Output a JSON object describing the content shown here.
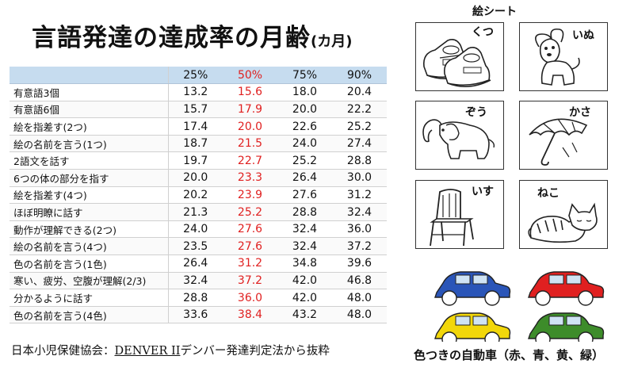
{
  "title": {
    "main": "言語発達の達成率の月齢",
    "unit": "(カ月)"
  },
  "table": {
    "columns": [
      "",
      "25%",
      "50%",
      "75%",
      "90%"
    ],
    "rows": [
      {
        "item": "有意語3個",
        "p25": "13.2",
        "p50": "15.6",
        "p75": "18.0",
        "p90": "20.4"
      },
      {
        "item": "有意語6個",
        "p25": "15.7",
        "p50": "17.9",
        "p75": "20.0",
        "p90": "22.2"
      },
      {
        "item": "絵を指差す(2つ)",
        "p25": "17.4",
        "p50": "20.0",
        "p75": "22.6",
        "p90": "25.2"
      },
      {
        "item": "絵の名前を言う(1つ)",
        "p25": "18.7",
        "p50": "21.5",
        "p75": "24.0",
        "p90": "27.4"
      },
      {
        "item": "2語文を話す",
        "p25": "19.7",
        "p50": "22.7",
        "p75": "25.2",
        "p90": "28.8"
      },
      {
        "item": "6つの体の部分を指す",
        "p25": "20.0",
        "p50": "23.3",
        "p75": "26.4",
        "p90": "30.0"
      },
      {
        "item": "絵を指差す(4つ)",
        "p25": "20.2",
        "p50": "23.9",
        "p75": "27.6",
        "p90": "31.2"
      },
      {
        "item": "ほぼ明瞭に話す",
        "p25": "21.3",
        "p50": "25.2",
        "p75": "28.8",
        "p90": "32.4"
      },
      {
        "item": "動作が理解できる(2つ)",
        "p25": "24.0",
        "p50": "27.6",
        "p75": "32.4",
        "p90": "36.0"
      },
      {
        "item": "絵の名前を言う(4つ)",
        "p25": "23.5",
        "p50": "27.6",
        "p75": "32.4",
        "p90": "37.2"
      },
      {
        "item": "色の名前を言う(1色)",
        "p25": "26.4",
        "p50": "31.2",
        "p75": "34.8",
        "p90": "39.6"
      },
      {
        "item": "寒い、疲労、空腹が理解(2/3)",
        "p25": "32.4",
        "p50": "37.2",
        "p75": "42.0",
        "p90": "46.8"
      },
      {
        "item": "分かるように話す",
        "p25": "28.8",
        "p50": "36.0",
        "p75": "42.0",
        "p90": "48.0"
      },
      {
        "item": "色の名前を言う(4色)",
        "p25": "33.6",
        "p50": "38.4",
        "p75": "43.2",
        "p90": "48.0"
      }
    ]
  },
  "source": {
    "org": "日本小児保健協会：",
    "test": "DENVER II",
    "rest": "デンバー発達判定法から抜粋"
  },
  "picture_sheet": {
    "title": "絵シート",
    "cards": [
      {
        "label": "くつ",
        "icon": "shoes-icon"
      },
      {
        "label": "いぬ",
        "icon": "dog-icon"
      },
      {
        "label": "ぞう",
        "icon": "elephant-icon"
      },
      {
        "label": "かさ",
        "icon": "umbrella-icon"
      },
      {
        "label": "いす",
        "icon": "chair-icon"
      },
      {
        "label": "ねこ",
        "icon": "cat-icon"
      }
    ]
  },
  "cars": {
    "caption": "色つきの自動車（赤、青、黄、緑）",
    "colors": [
      "#2a55b8",
      "#e02020",
      "#f2d70a",
      "#3d8c2a"
    ]
  },
  "colors": {
    "header_bg": "#c6dcef",
    "p50_text": "#e02020"
  }
}
